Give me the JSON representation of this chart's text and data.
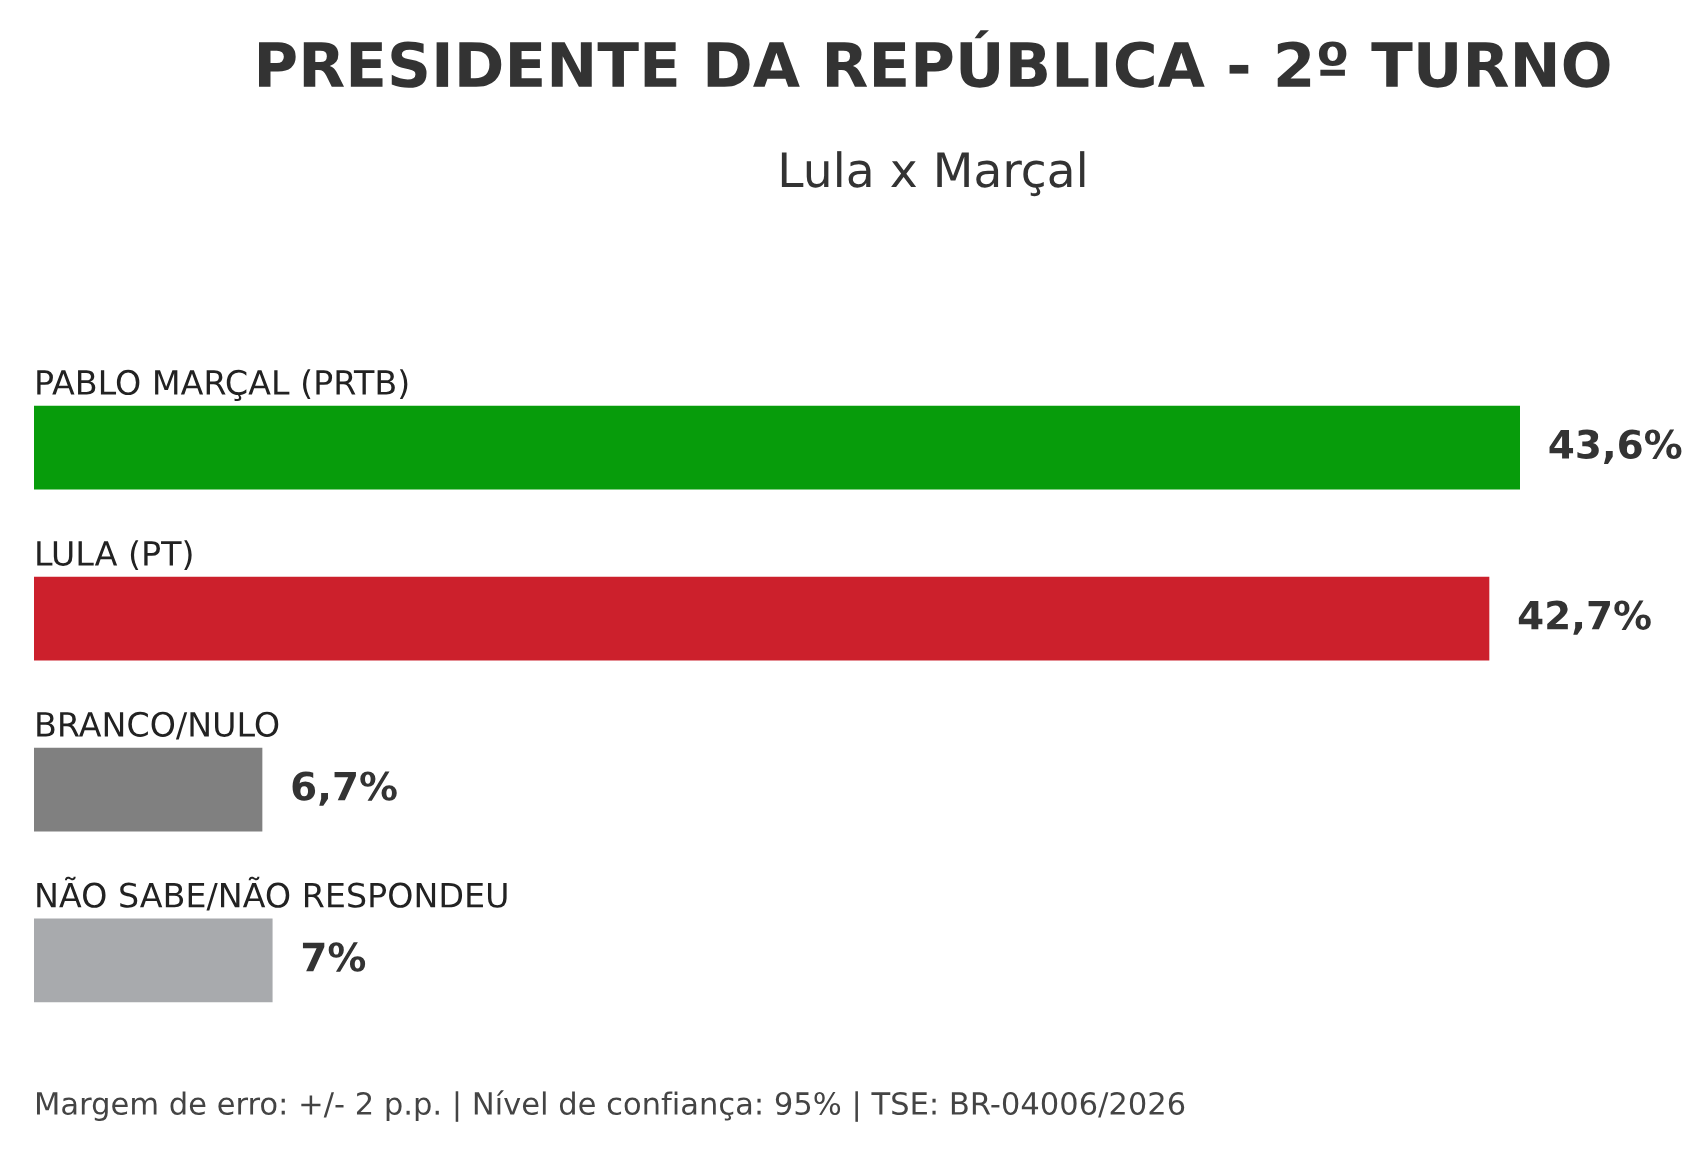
{
  "chart_data": {
    "type": "bar",
    "orientation": "horizontal",
    "title": "PRESIDENTE DA REPÚBLICA - 2º TURNO",
    "subtitle": "Lula x Marçal",
    "categories": [
      "PABLO MARÇAL (PRTB)",
      "LULA (PT)",
      "BRANCO/NULO",
      "NÃO SABE/NÃO RESPONDEU"
    ],
    "values": [
      43.6,
      42.7,
      6.7,
      7
    ],
    "colors": [
      "#079c0b",
      "#cc202c",
      "#808080",
      "#a8aaad"
    ],
    "value_labels": [
      "43,6%",
      "42,7%",
      "6,7%",
      "7%"
    ],
    "annotations": [
      "Margem de erro: +/- 2 p.p. | Nível de confiança: 95% | TSE: BR-04006/2026"
    ]
  }
}
